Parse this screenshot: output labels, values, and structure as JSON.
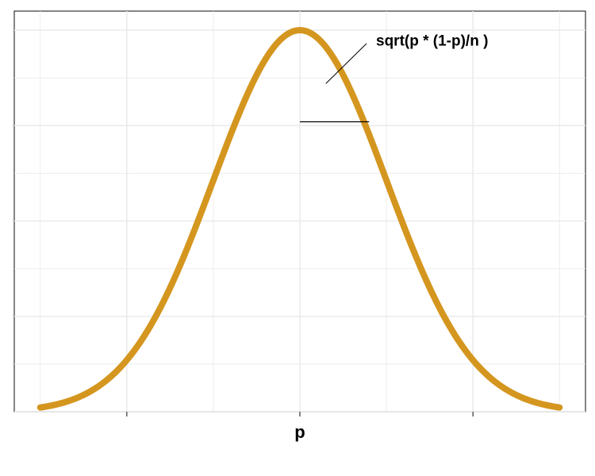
{
  "chart_data": {
    "type": "line",
    "title": "",
    "xlabel": "",
    "ylabel": "",
    "x_tick_labels": [
      "",
      "p",
      ""
    ],
    "x_tick_values": [
      -2,
      0,
      2
    ],
    "xlim": [
      -3.3,
      3.3
    ],
    "ylim": [
      0,
      1.05
    ],
    "grid": true,
    "legend": "none",
    "series": [
      {
        "color": "#D4961F",
        "x": [
          -3.0,
          -2.75,
          -2.5,
          -2.25,
          -2.0,
          -1.75,
          -1.5,
          -1.25,
          -1.0,
          -0.75,
          -0.5,
          -0.25,
          0.0,
          0.25,
          0.5,
          0.75,
          1.0,
          1.25,
          1.5,
          1.75,
          2.0,
          2.25,
          2.5,
          2.75,
          3.0
        ],
        "y": [
          0.011,
          0.023,
          0.044,
          0.08,
          0.135,
          0.216,
          0.325,
          0.458,
          0.607,
          0.755,
          0.882,
          0.969,
          1.0,
          0.969,
          0.882,
          0.755,
          0.607,
          0.458,
          0.325,
          0.216,
          0.135,
          0.08,
          0.044,
          0.023,
          0.011
        ]
      }
    ],
    "annotation": {
      "text": "sqrt(p * (1-p)/n )",
      "segment_x": [
        0,
        0.8
      ],
      "segment_y": 0.76
    }
  }
}
